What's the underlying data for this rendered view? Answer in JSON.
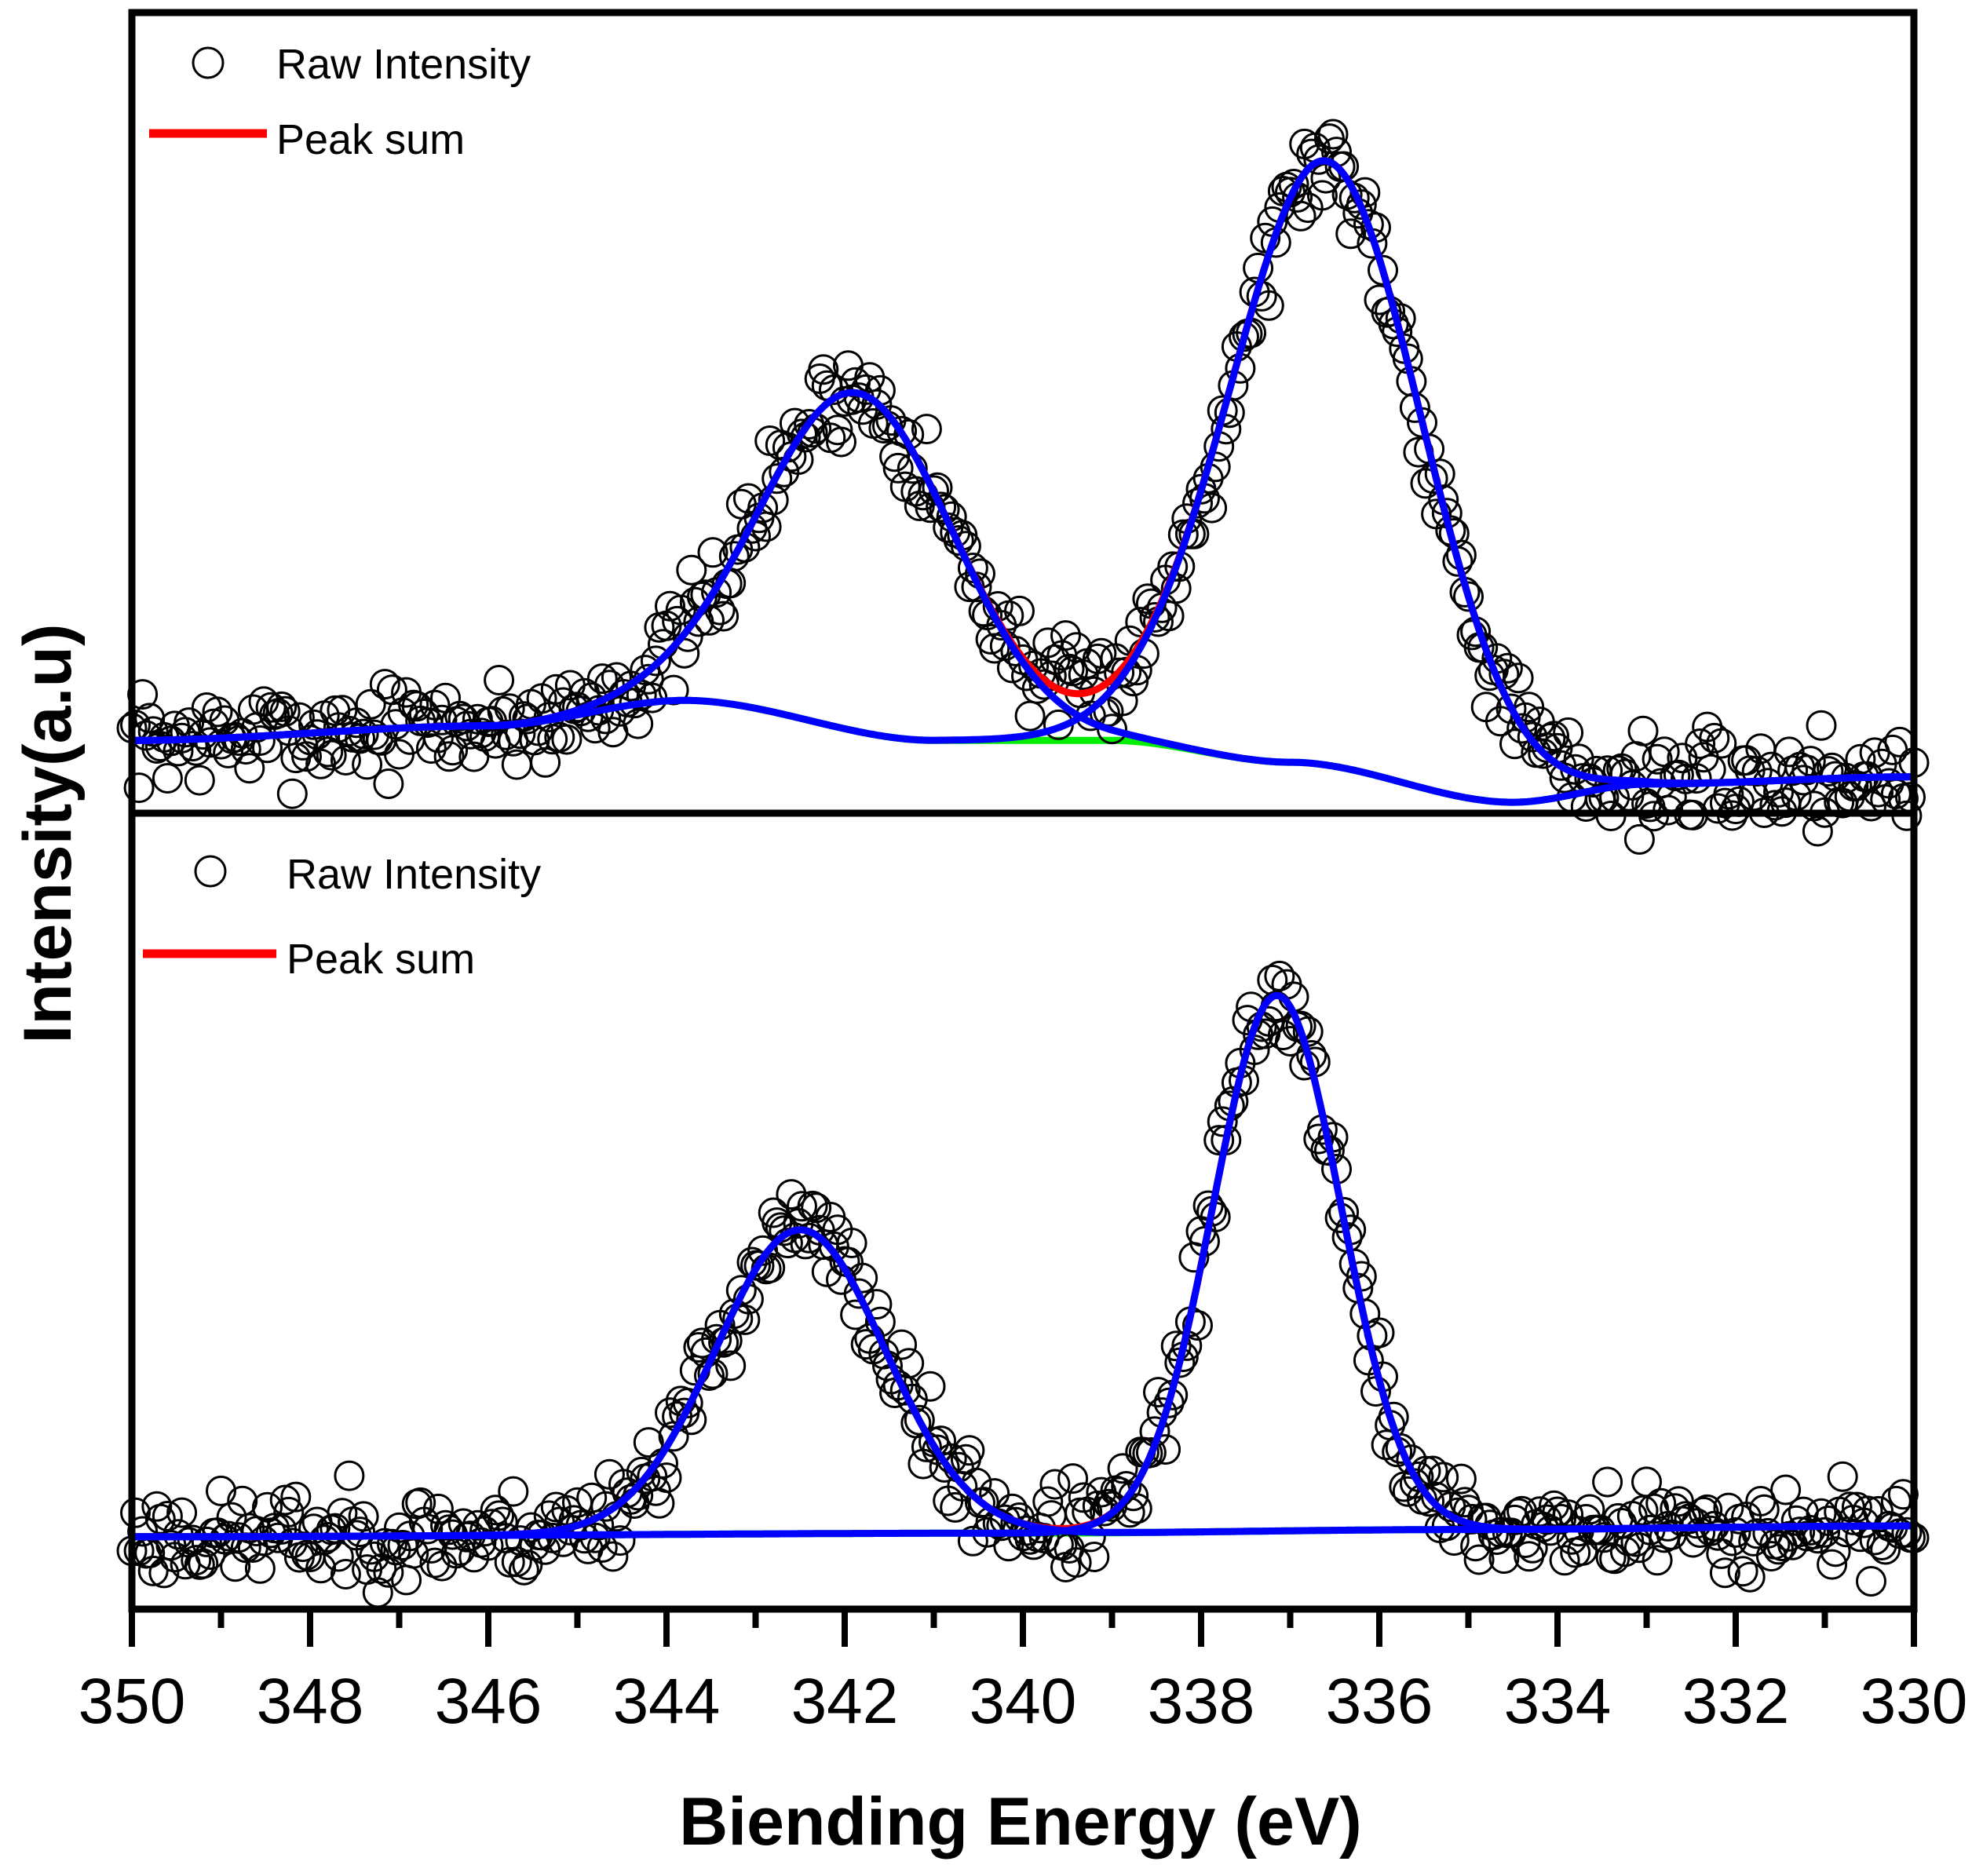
{
  "chart_data": {
    "type": "line",
    "xlabel": "Biending Energy (eV)",
    "ylabel": "Intensity(a.u)",
    "xlim": [
      350,
      330
    ],
    "x_ticks": [
      350,
      348,
      346,
      344,
      342,
      340,
      338,
      336,
      334,
      332,
      330
    ],
    "x_tick_labels": [
      "350",
      "348",
      "346",
      "344",
      "342",
      "340",
      "338",
      "336",
      "334",
      "332",
      "330"
    ],
    "x_minor_step": 1,
    "grid": false,
    "colors": {
      "raw": "#000000",
      "peak_sum": "#ff0000",
      "components": "#0000ff",
      "background": "#00ee00",
      "frame": "#000000"
    },
    "panels": [
      {
        "name": "top",
        "legend": [
          "Raw Intensity",
          "Peak sum"
        ],
        "legend_position": "top-left",
        "ylim": [
          -0.1,
          1.0
        ],
        "raw_noise": 0.032,
        "raw_seed": 7,
        "baseline": {
          "x": [
            350,
            346,
            343.8,
            341,
            339,
            337,
            334.5,
            333,
            330
          ],
          "y": [
            0.0,
            0.02,
            0.055,
            0.0,
            0.0,
            -0.03,
            -0.085,
            -0.06,
            -0.05
          ]
        },
        "peaks": [
          {
            "center": 341.85,
            "sigma": 1.08,
            "height": 0.465
          },
          {
            "center": 336.6,
            "sigma": 1.08,
            "height": 0.83
          }
        ]
      },
      {
        "name": "bottom",
        "legend": [
          "Raw Intensity",
          "Peak sum"
        ],
        "legend_position": "top-left",
        "ylim": [
          -0.1,
          1.0
        ],
        "raw_noise": 0.03,
        "raw_seed": 23,
        "baseline": {
          "x": [
            350,
            340,
            335,
            330
          ],
          "y": [
            0.0,
            0.005,
            0.01,
            0.015
          ]
        },
        "peaks": [
          {
            "center": 342.5,
            "sigma": 0.95,
            "height": 0.42
          },
          {
            "center": 337.15,
            "sigma": 0.72,
            "height": 0.74
          }
        ]
      }
    ]
  }
}
